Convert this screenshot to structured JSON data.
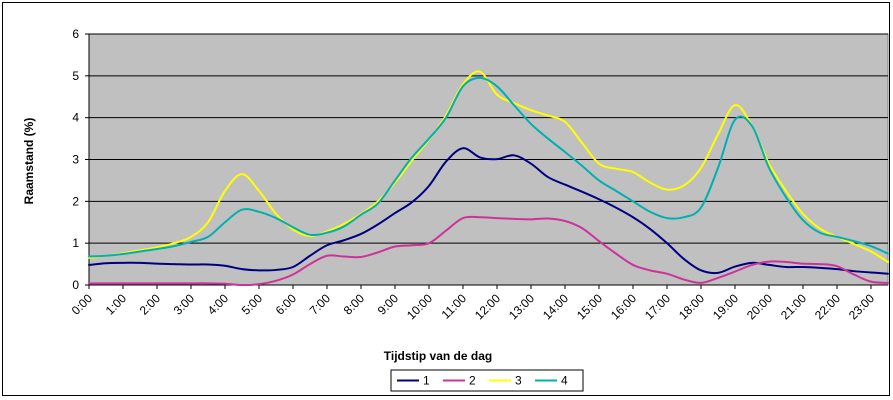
{
  "chart_data": {
    "type": "line",
    "xlabel": "Tijdstip van de dag",
    "ylabel": "Raamstand (%)",
    "ylim": [
      0,
      6
    ],
    "yticks": [
      "0",
      "1",
      "2",
      "3",
      "4",
      "5",
      "6"
    ],
    "categories": [
      "0:00",
      "1:00",
      "2:00",
      "3:00",
      "4:00",
      "5:00",
      "6:00",
      "7:00",
      "8:00",
      "9:00",
      "10:00",
      "11:00",
      "12:00",
      "13:00",
      "14:00",
      "15:00",
      "16:00",
      "17:00",
      "18:00",
      "19:00",
      "20:00",
      "21:00",
      "22:00",
      "23:00"
    ],
    "x": [
      0,
      0.5,
      1,
      1.5,
      2,
      2.5,
      3,
      3.5,
      4,
      4.5,
      5,
      5.5,
      6,
      6.5,
      7,
      7.5,
      8,
      8.5,
      9,
      9.5,
      10,
      10.5,
      11,
      11.5,
      12,
      12.5,
      13,
      13.5,
      14,
      14.5,
      15,
      15.5,
      16,
      16.5,
      17,
      17.5,
      18,
      18.5,
      19,
      19.5,
      20,
      20.5,
      21,
      21.5,
      22,
      22.5,
      23,
      23.5
    ],
    "grid": true,
    "plot_background": "#c0c0c0",
    "legend_position": "bottom",
    "series": [
      {
        "name": "1",
        "color": "#000080",
        "values": [
          0.48,
          0.52,
          0.53,
          0.53,
          0.51,
          0.5,
          0.49,
          0.49,
          0.46,
          0.38,
          0.35,
          0.36,
          0.43,
          0.7,
          0.95,
          1.07,
          1.22,
          1.45,
          1.72,
          1.98,
          2.37,
          2.95,
          3.27,
          3.05,
          3.01,
          3.1,
          2.9,
          2.58,
          2.4,
          2.23,
          2.05,
          1.85,
          1.62,
          1.34,
          1.0,
          0.62,
          0.35,
          0.29,
          0.44,
          0.53,
          0.48,
          0.43,
          0.43,
          0.41,
          0.38,
          0.33,
          0.3,
          0.27
        ]
      },
      {
        "name": "2",
        "color": "#cc3399",
        "values": [
          0.04,
          0.04,
          0.04,
          0.04,
          0.04,
          0.04,
          0.04,
          0.04,
          0.03,
          0.0,
          0.02,
          0.1,
          0.25,
          0.5,
          0.7,
          0.68,
          0.67,
          0.78,
          0.92,
          0.95,
          1.0,
          1.3,
          1.6,
          1.62,
          1.6,
          1.58,
          1.57,
          1.59,
          1.53,
          1.36,
          1.05,
          0.75,
          0.48,
          0.35,
          0.27,
          0.13,
          0.05,
          0.17,
          0.32,
          0.48,
          0.56,
          0.55,
          0.51,
          0.5,
          0.45,
          0.25,
          0.08,
          0.05
        ]
      },
      {
        "name": "3",
        "color": "#ffff00",
        "values": [
          0.65,
          0.7,
          0.76,
          0.83,
          0.9,
          1.0,
          1.15,
          1.5,
          2.25,
          2.65,
          2.25,
          1.7,
          1.33,
          1.17,
          1.28,
          1.46,
          1.7,
          2.0,
          2.45,
          2.98,
          3.48,
          4.05,
          4.8,
          5.1,
          4.55,
          4.35,
          4.18,
          4.05,
          3.9,
          3.4,
          2.9,
          2.78,
          2.7,
          2.45,
          2.28,
          2.38,
          2.8,
          3.6,
          4.3,
          3.8,
          2.9,
          2.25,
          1.7,
          1.35,
          1.15,
          0.98,
          0.8,
          0.55
        ]
      },
      {
        "name": "4",
        "color": "#00b0b0",
        "values": [
          0.68,
          0.7,
          0.74,
          0.8,
          0.86,
          0.93,
          1.03,
          1.15,
          1.5,
          1.8,
          1.75,
          1.6,
          1.38,
          1.2,
          1.25,
          1.4,
          1.68,
          1.95,
          2.5,
          3.05,
          3.5,
          4.0,
          4.75,
          4.95,
          4.75,
          4.3,
          3.85,
          3.5,
          3.18,
          2.85,
          2.5,
          2.25,
          2.0,
          1.75,
          1.6,
          1.62,
          1.85,
          2.8,
          3.95,
          3.8,
          2.8,
          2.1,
          1.55,
          1.25,
          1.15,
          1.05,
          0.93,
          0.75
        ]
      }
    ]
  }
}
